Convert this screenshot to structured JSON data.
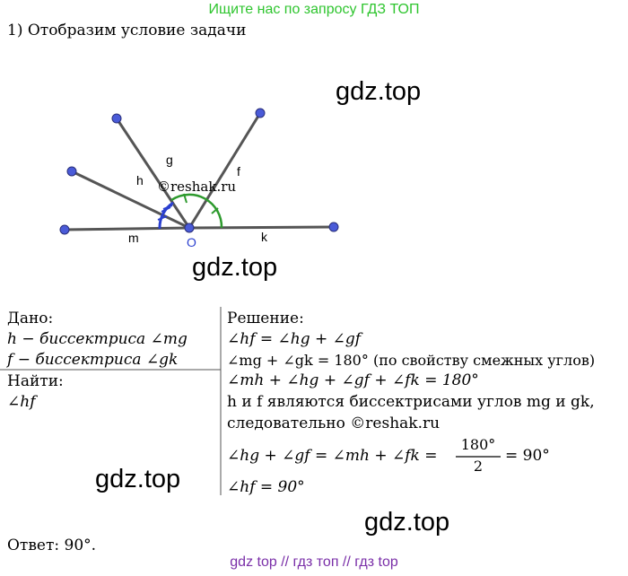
{
  "banner": "Ищите нас по запросу ГДЗ ТОП",
  "step_title": "1) Отобразим условие задачи",
  "watermarks": [
    "gdz.top",
    "gdz.top",
    "gdz.top",
    "gdz.top"
  ],
  "figure": {
    "labels": {
      "g": "g",
      "h": "h",
      "f": "f",
      "m": "m",
      "k": "k",
      "o": "O"
    },
    "copyright": "©reshak.ru",
    "colors": {
      "ray": "#555555",
      "point": "#4a5bd8",
      "green_arc": "#2e9a2e",
      "blue_arc": "#2a3fcf"
    }
  },
  "given": {
    "header": "Дано:",
    "line1": "h − биссектриса ∠mg",
    "line2": "f − биссектриса ∠gk"
  },
  "find": {
    "header": "Найти:",
    "line1": "∠hf"
  },
  "solution": {
    "header": "Решение:",
    "line1": "∠hf = ∠hg + ∠gf",
    "line2": "∠mg + ∠gk = 180° (по свойству смежных углов)",
    "line3": "∠mh + ∠hg + ∠gf + ∠fk = 180°",
    "line4": "h и f являются биссектрисами углов mg и gk,",
    "line5": "следовательно ©reshak.ru",
    "line6_left": "∠hg + ∠gf = ∠mh + ∠fk =",
    "frac_num": "180°",
    "frac_den": "2",
    "line6_right": "= 90°",
    "line7": "∠hf = 90°"
  },
  "answer": "Ответ: 90°.",
  "footer": "gdz top  //  гдз топ  //  гдз top"
}
